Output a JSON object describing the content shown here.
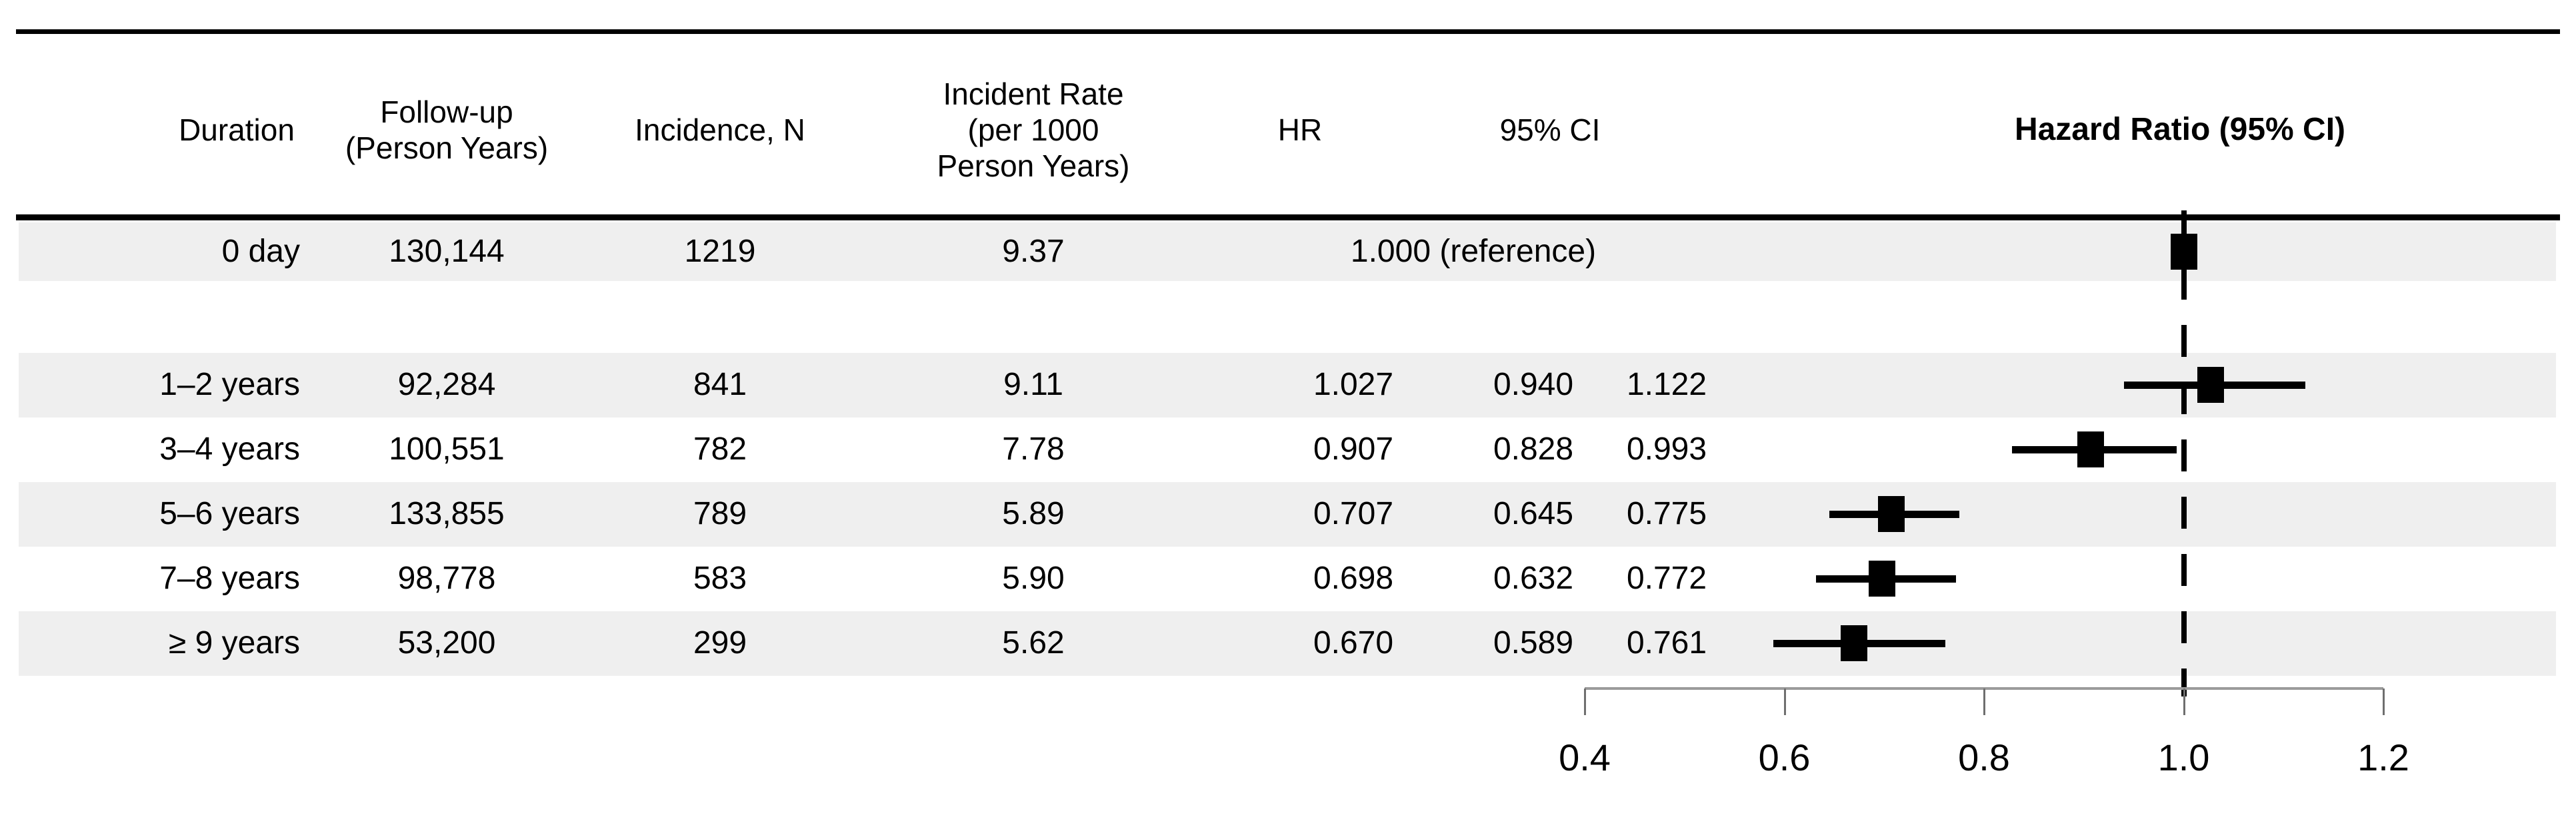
{
  "table": {
    "columns": {
      "duration": "Duration",
      "followup": "Follow-up\n(Person Years)",
      "incidence": "Incidence, N",
      "rate": "Incident Rate\n(per 1000\nPerson Years)",
      "hr": "HR",
      "ci": "95% CI"
    },
    "plot_header": "Hazard Ratio (95% CI)",
    "rows": [
      {
        "duration": "0 day",
        "followup": "130,144",
        "incidence": "1219",
        "rate": "9.37",
        "hr_text": "1.000 (reference)",
        "ci_low": "",
        "ci_high": ""
      },
      {
        "duration": "1–2 years",
        "followup": "92,284",
        "incidence": "841",
        "rate": "9.11",
        "hr_text": "1.027",
        "ci_low": "0.940",
        "ci_high": "1.122"
      },
      {
        "duration": "3–4 years",
        "followup": "100,551",
        "incidence": "782",
        "rate": "7.78",
        "hr_text": "0.907",
        "ci_low": "0.828",
        "ci_high": "0.993"
      },
      {
        "duration": "5–6 years",
        "followup": "133,855",
        "incidence": "789",
        "rate": "5.89",
        "hr_text": "0.707",
        "ci_low": "0.645",
        "ci_high": "0.775"
      },
      {
        "duration": "7–8 years",
        "followup": "98,778",
        "incidence": "583",
        "rate": "5.90",
        "hr_text": "0.698",
        "ci_low": "0.632",
        "ci_high": "0.772"
      },
      {
        "duration": "≥ 9 years",
        "followup": "53,200",
        "incidence": "299",
        "rate": "5.62",
        "hr_text": "0.670",
        "ci_low": "0.589",
        "ci_high": "0.761"
      }
    ]
  },
  "chart_data": {
    "type": "forest",
    "title": "Hazard Ratio (95% CI)",
    "x_axis": {
      "range": [
        0.4,
        1.2
      ],
      "ticks": [
        0.4,
        0.6,
        0.8,
        1.0,
        1.2
      ],
      "tick_labels": [
        "0.4",
        "0.6",
        "0.8",
        "1.0",
        "1.2"
      ],
      "reference_line": 1.0,
      "grid": false
    },
    "marker_color": "#000000",
    "band_color": "#efefef",
    "series": [
      {
        "label": "0 day",
        "hr": 1.0,
        "ci_low": null,
        "ci_high": null,
        "reference": true
      },
      {
        "label": "1–2 years",
        "hr": 1.027,
        "ci_low": 0.94,
        "ci_high": 1.122,
        "reference": false
      },
      {
        "label": "3–4 years",
        "hr": 0.907,
        "ci_low": 0.828,
        "ci_high": 0.993,
        "reference": false
      },
      {
        "label": "5–6 years",
        "hr": 0.707,
        "ci_low": 0.645,
        "ci_high": 0.775,
        "reference": false
      },
      {
        "label": "7–8 years",
        "hr": 0.698,
        "ci_low": 0.632,
        "ci_high": 0.772,
        "reference": false
      },
      {
        "label": "≥ 9 years",
        "hr": 0.67,
        "ci_low": 0.589,
        "ci_high": 0.761,
        "reference": false
      }
    ]
  }
}
